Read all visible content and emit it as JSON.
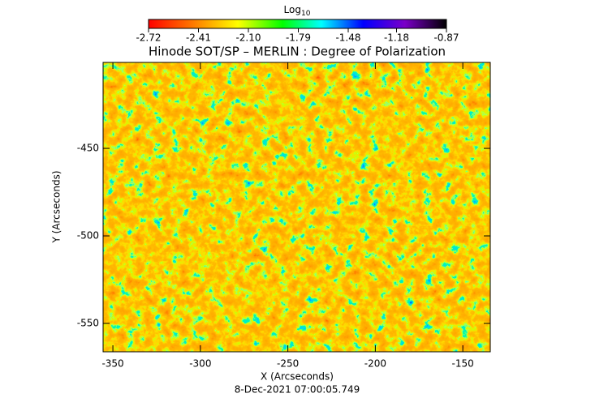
{
  "chart_data": {
    "type": "image",
    "title": "Hinode SOT/SP – MERLIN : Degree of Polarization",
    "subtitle": "8-Dec-2021 07:00:05.749",
    "x_label": "X (Arcseconds)",
    "y_label": "Y (Arcseconds)",
    "xlim": [
      -355.6,
      -134.3
    ],
    "xticks": [
      -350,
      -300,
      -250,
      -200,
      -150
    ],
    "ylim": [
      -566.2,
      -400.9
    ],
    "yticks": [
      -550,
      -500,
      -450
    ],
    "colorbar_label": "Log",
    "colorbar_label_sub": "10",
    "colorbar_lim": [
      -2.72,
      -0.87
    ],
    "colorbar_ticks": [
      -2.72,
      -2.41,
      {
        "value": -2.1,
        "label": "-2.10"
      },
      -1.79,
      -1.48,
      -1.18,
      -0.87
    ]
  }
}
